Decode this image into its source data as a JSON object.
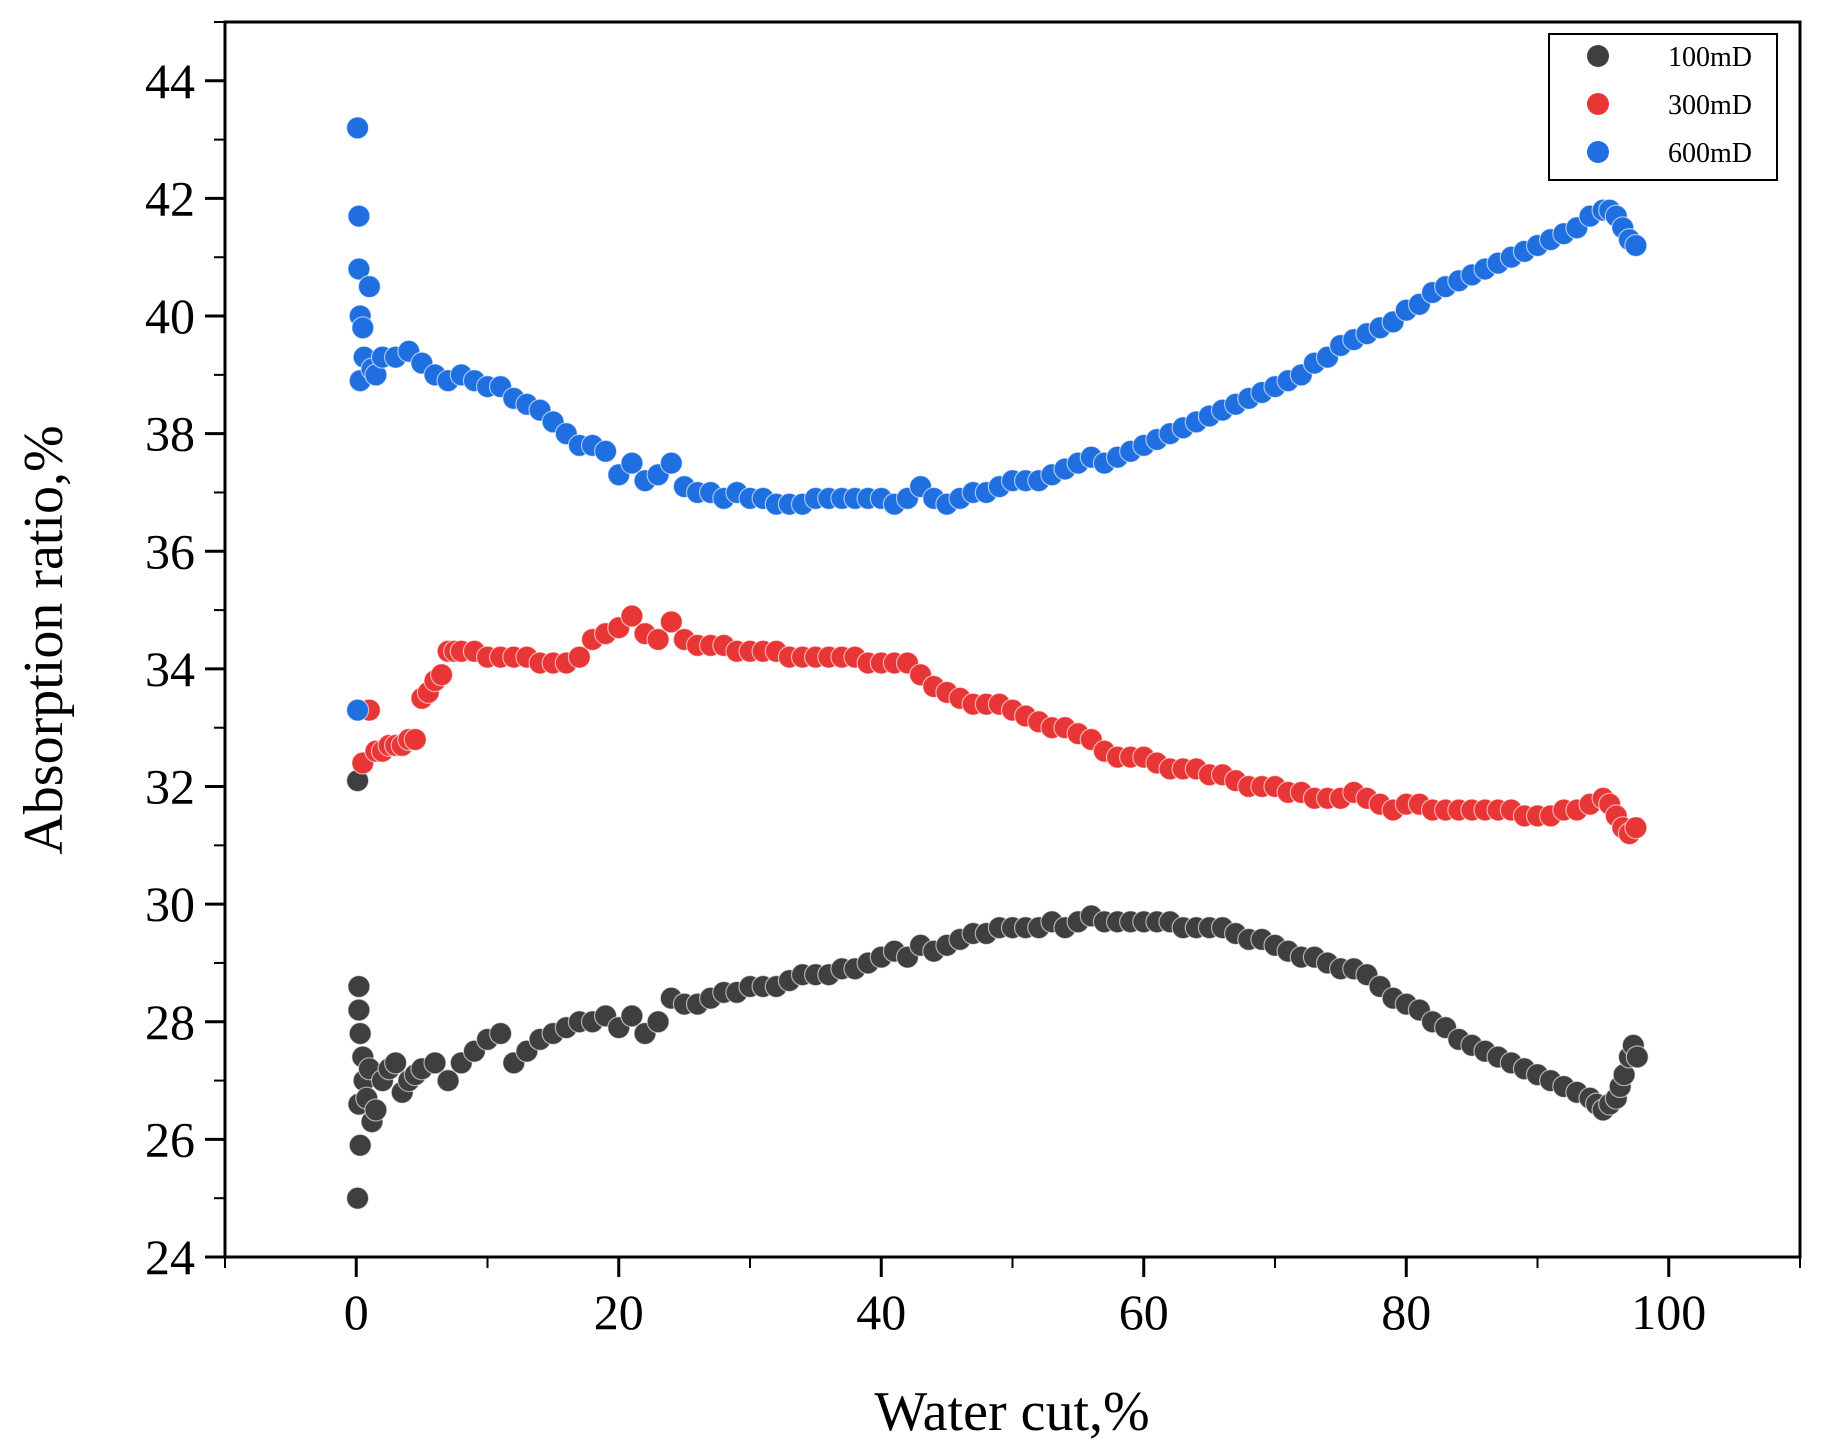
{
  "chart_data": {
    "type": "scatter",
    "title": "",
    "xlabel": "Water cut,%",
    "ylabel": "Absorption ratio,%",
    "xlim": [
      -10,
      110
    ],
    "ylim": [
      24,
      45
    ],
    "xticks": [
      0,
      20,
      40,
      60,
      80,
      100
    ],
    "xtick_labels": [
      "0",
      "20",
      "40",
      "60",
      "80",
      "100"
    ],
    "yticks": [
      24,
      26,
      28,
      30,
      32,
      34,
      36,
      38,
      40,
      42,
      44
    ],
    "ytick_labels": [
      "24",
      "26",
      "28",
      "30",
      "32",
      "34",
      "36",
      "38",
      "40",
      "42",
      "44"
    ],
    "grid": false,
    "legend_position": "top-right",
    "series": [
      {
        "name": "100mD",
        "color": "#3f3f3f",
        "x": [
          0.1,
          0.1,
          0.2,
          0.2,
          0.2,
          0.3,
          0.3,
          0.5,
          0.6,
          0.8,
          1.0,
          1.2,
          1.5,
          2.0,
          2.5,
          3.0,
          3.5,
          4.0,
          4.5,
          5.0,
          6.0,
          7.0,
          8.0,
          9.0,
          10.0,
          11.0,
          12.0,
          13.0,
          14.0,
          15.0,
          16.0,
          17.0,
          18.0,
          19.0,
          20.0,
          21.0,
          22.0,
          23.0,
          24.0,
          25.0,
          26.0,
          27.0,
          28.0,
          29.0,
          30.0,
          31.0,
          32.0,
          33.0,
          34.0,
          35.0,
          36.0,
          37.0,
          38.0,
          39.0,
          40.0,
          41.0,
          42.0,
          43.0,
          44.0,
          45.0,
          46.0,
          47.0,
          48.0,
          49.0,
          50.0,
          51.0,
          52.0,
          53.0,
          54.0,
          55.0,
          56.0,
          57.0,
          58.0,
          59.0,
          60.0,
          61.0,
          62.0,
          63.0,
          64.0,
          65.0,
          66.0,
          67.0,
          68.0,
          69.0,
          70.0,
          71.0,
          72.0,
          73.0,
          74.0,
          75.0,
          76.0,
          77.0,
          78.0,
          79.0,
          80.0,
          81.0,
          82.0,
          83.0,
          84.0,
          85.0,
          86.0,
          87.0,
          88.0,
          89.0,
          90.0,
          91.0,
          92.0,
          93.0,
          94.0,
          94.5,
          95.0,
          95.5,
          96.0,
          96.3,
          96.6,
          97.0,
          97.3,
          97.6
        ],
        "y": [
          25.0,
          32.1,
          28.6,
          28.2,
          26.6,
          25.9,
          27.8,
          27.4,
          27.0,
          26.7,
          27.2,
          26.3,
          26.5,
          27.0,
          27.2,
          27.3,
          26.8,
          27.0,
          27.1,
          27.2,
          27.3,
          27.0,
          27.3,
          27.5,
          27.7,
          27.8,
          27.3,
          27.5,
          27.7,
          27.8,
          27.9,
          28.0,
          28.0,
          28.1,
          27.9,
          28.1,
          27.8,
          28.0,
          28.4,
          28.3,
          28.3,
          28.4,
          28.5,
          28.5,
          28.6,
          28.6,
          28.6,
          28.7,
          28.8,
          28.8,
          28.8,
          28.9,
          28.9,
          29.0,
          29.1,
          29.2,
          29.1,
          29.3,
          29.2,
          29.3,
          29.4,
          29.5,
          29.5,
          29.6,
          29.6,
          29.6,
          29.6,
          29.7,
          29.6,
          29.7,
          29.8,
          29.7,
          29.7,
          29.7,
          29.7,
          29.7,
          29.7,
          29.6,
          29.6,
          29.6,
          29.6,
          29.5,
          29.4,
          29.4,
          29.3,
          29.2,
          29.1,
          29.1,
          29.0,
          28.9,
          28.9,
          28.8,
          28.6,
          28.4,
          28.3,
          28.2,
          28.0,
          27.9,
          27.7,
          27.6,
          27.5,
          27.4,
          27.3,
          27.2,
          27.1,
          27.0,
          26.9,
          26.8,
          26.7,
          26.6,
          26.5,
          26.6,
          26.7,
          26.9,
          27.1,
          27.4,
          27.6,
          27.4
        ]
      },
      {
        "name": "300mD",
        "color": "#e83535",
        "x": [
          0.5,
          1.0,
          1.5,
          2.0,
          2.5,
          3.0,
          3.5,
          4.0,
          4.5,
          5.0,
          5.5,
          6.0,
          6.5,
          7.0,
          7.5,
          8.0,
          9.0,
          10.0,
          11.0,
          12.0,
          13.0,
          14.0,
          15.0,
          16.0,
          17.0,
          18.0,
          19.0,
          20.0,
          21.0,
          22.0,
          23.0,
          24.0,
          25.0,
          26.0,
          27.0,
          28.0,
          29.0,
          30.0,
          31.0,
          32.0,
          33.0,
          34.0,
          35.0,
          36.0,
          37.0,
          38.0,
          39.0,
          40.0,
          41.0,
          42.0,
          43.0,
          44.0,
          45.0,
          46.0,
          47.0,
          48.0,
          49.0,
          50.0,
          51.0,
          52.0,
          53.0,
          54.0,
          55.0,
          56.0,
          57.0,
          58.0,
          59.0,
          60.0,
          61.0,
          62.0,
          63.0,
          64.0,
          65.0,
          66.0,
          67.0,
          68.0,
          69.0,
          70.0,
          71.0,
          72.0,
          73.0,
          74.0,
          75.0,
          76.0,
          77.0,
          78.0,
          79.0,
          80.0,
          81.0,
          82.0,
          83.0,
          84.0,
          85.0,
          86.0,
          87.0,
          88.0,
          89.0,
          90.0,
          91.0,
          92.0,
          93.0,
          94.0,
          95.0,
          95.5,
          96.0,
          96.5,
          97.0,
          97.5
        ],
        "y": [
          32.4,
          33.3,
          32.6,
          32.6,
          32.7,
          32.7,
          32.7,
          32.8,
          32.8,
          33.5,
          33.6,
          33.8,
          33.9,
          34.3,
          34.3,
          34.3,
          34.3,
          34.2,
          34.2,
          34.2,
          34.2,
          34.1,
          34.1,
          34.1,
          34.2,
          34.5,
          34.6,
          34.7,
          34.9,
          34.6,
          34.5,
          34.8,
          34.5,
          34.4,
          34.4,
          34.4,
          34.3,
          34.3,
          34.3,
          34.3,
          34.2,
          34.2,
          34.2,
          34.2,
          34.2,
          34.2,
          34.1,
          34.1,
          34.1,
          34.1,
          33.9,
          33.7,
          33.6,
          33.5,
          33.4,
          33.4,
          33.4,
          33.3,
          33.2,
          33.1,
          33.0,
          33.0,
          32.9,
          32.8,
          32.6,
          32.5,
          32.5,
          32.5,
          32.4,
          32.3,
          32.3,
          32.3,
          32.2,
          32.2,
          32.1,
          32.0,
          32.0,
          32.0,
          31.9,
          31.9,
          31.8,
          31.8,
          31.8,
          31.9,
          31.8,
          31.7,
          31.6,
          31.7,
          31.7,
          31.6,
          31.6,
          31.6,
          31.6,
          31.6,
          31.6,
          31.6,
          31.5,
          31.5,
          31.5,
          31.6,
          31.6,
          31.7,
          31.8,
          31.7,
          31.5,
          31.3,
          31.2,
          31.3
        ]
      },
      {
        "name": "600mD",
        "color": "#1f6fe0",
        "x": [
          0.1,
          0.1,
          0.2,
          0.2,
          0.3,
          0.3,
          0.5,
          0.6,
          1.0,
          1.2,
          1.5,
          2.0,
          3.0,
          4.0,
          5.0,
          6.0,
          7.0,
          8.0,
          9.0,
          10.0,
          11.0,
          12.0,
          13.0,
          14.0,
          15.0,
          16.0,
          17.0,
          18.0,
          19.0,
          20.0,
          21.0,
          22.0,
          23.0,
          24.0,
          25.0,
          26.0,
          27.0,
          28.0,
          29.0,
          30.0,
          31.0,
          32.0,
          33.0,
          34.0,
          35.0,
          36.0,
          37.0,
          38.0,
          39.0,
          40.0,
          41.0,
          42.0,
          43.0,
          44.0,
          45.0,
          46.0,
          47.0,
          48.0,
          49.0,
          50.0,
          51.0,
          52.0,
          53.0,
          54.0,
          55.0,
          56.0,
          57.0,
          58.0,
          59.0,
          60.0,
          61.0,
          62.0,
          63.0,
          64.0,
          65.0,
          66.0,
          67.0,
          68.0,
          69.0,
          70.0,
          71.0,
          72.0,
          73.0,
          74.0,
          75.0,
          76.0,
          77.0,
          78.0,
          79.0,
          80.0,
          81.0,
          82.0,
          83.0,
          84.0,
          85.0,
          86.0,
          87.0,
          88.0,
          89.0,
          90.0,
          91.0,
          92.0,
          93.0,
          94.0,
          95.0,
          95.5,
          96.0,
          96.5,
          97.0,
          97.5
        ],
        "y": [
          33.3,
          43.2,
          41.7,
          40.8,
          40.0,
          38.9,
          39.8,
          39.3,
          40.5,
          39.1,
          39.0,
          39.3,
          39.3,
          39.4,
          39.2,
          39.0,
          38.9,
          39.0,
          38.9,
          38.8,
          38.8,
          38.6,
          38.5,
          38.4,
          38.2,
          38.0,
          37.8,
          37.8,
          37.7,
          37.3,
          37.5,
          37.2,
          37.3,
          37.5,
          37.1,
          37.0,
          37.0,
          36.9,
          37.0,
          36.9,
          36.9,
          36.8,
          36.8,
          36.8,
          36.9,
          36.9,
          36.9,
          36.9,
          36.9,
          36.9,
          36.8,
          36.9,
          37.1,
          36.9,
          36.8,
          36.9,
          37.0,
          37.0,
          37.1,
          37.2,
          37.2,
          37.2,
          37.3,
          37.4,
          37.5,
          37.6,
          37.5,
          37.6,
          37.7,
          37.8,
          37.9,
          38.0,
          38.1,
          38.2,
          38.3,
          38.4,
          38.5,
          38.6,
          38.7,
          38.8,
          38.9,
          39.0,
          39.2,
          39.3,
          39.5,
          39.6,
          39.7,
          39.8,
          39.9,
          40.1,
          40.2,
          40.4,
          40.5,
          40.6,
          40.7,
          40.8,
          40.9,
          41.0,
          41.1,
          41.2,
          41.3,
          41.4,
          41.5,
          41.7,
          41.8,
          41.8,
          41.7,
          41.5,
          41.3,
          41.2
        ]
      }
    ]
  }
}
